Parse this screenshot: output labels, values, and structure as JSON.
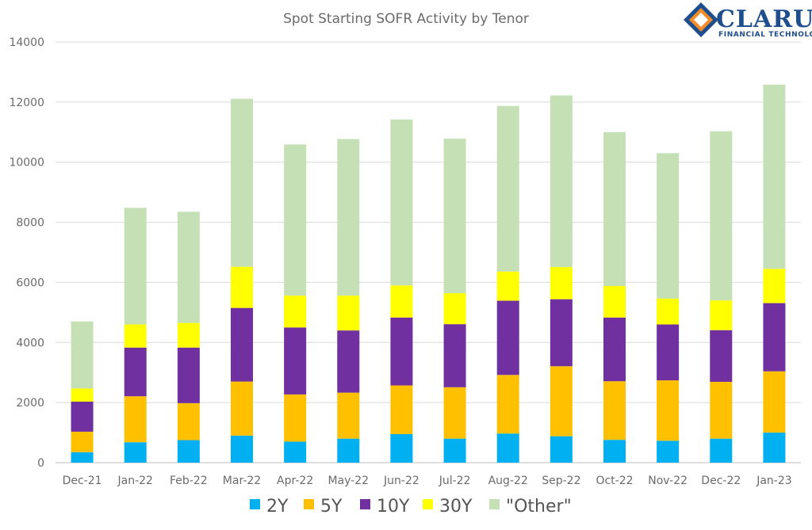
{
  "chart_data": {
    "type": "bar",
    "stacked": true,
    "title": "Spot Starting SOFR Activity by Tenor",
    "xlabel": "",
    "ylabel": "",
    "ylim": [
      0,
      14000
    ],
    "yticks": [
      0,
      2000,
      4000,
      6000,
      8000,
      10000,
      12000,
      14000
    ],
    "grid": true,
    "legend_position": "bottom",
    "categories": [
      "Dec-21",
      "Jan-22",
      "Feb-22",
      "Mar-22",
      "Apr-22",
      "May-22",
      "Jun-22",
      "Jul-22",
      "Aug-22",
      "Sep-22",
      "Oct-22",
      "Nov-22",
      "Dec-22",
      "Jan-23"
    ],
    "series": [
      {
        "name": "2Y",
        "color": "#00b0f0",
        "values": [
          350,
          680,
          750,
          900,
          700,
          800,
          950,
          800,
          970,
          880,
          760,
          730,
          800,
          1000
        ]
      },
      {
        "name": "5Y",
        "color": "#ffc000",
        "values": [
          680,
          1530,
          1230,
          1800,
          1570,
          1530,
          1620,
          1710,
          1950,
          2330,
          1950,
          2010,
          1890,
          2040
        ]
      },
      {
        "name": "10Y",
        "color": "#7030a0",
        "values": [
          1000,
          1620,
          1850,
          2450,
          2230,
          2070,
          2260,
          2100,
          2470,
          2230,
          2120,
          1860,
          1720,
          2270
        ]
      },
      {
        "name": "30Y",
        "color": "#ffff00",
        "values": [
          440,
          770,
          820,
          1370,
          1060,
          1160,
          1070,
          1030,
          970,
          1070,
          1050,
          860,
          990,
          1140
        ]
      },
      {
        "name": "\"Other\"",
        "color": "#c5e0b4",
        "values": [
          2230,
          3880,
          3700,
          5590,
          5030,
          5210,
          5520,
          5140,
          5510,
          5710,
          5120,
          4840,
          5630,
          6130
        ]
      }
    ]
  },
  "logo": {
    "name": "CLARUS",
    "tagline": "FINANCIAL TECHNOLOGY"
  }
}
